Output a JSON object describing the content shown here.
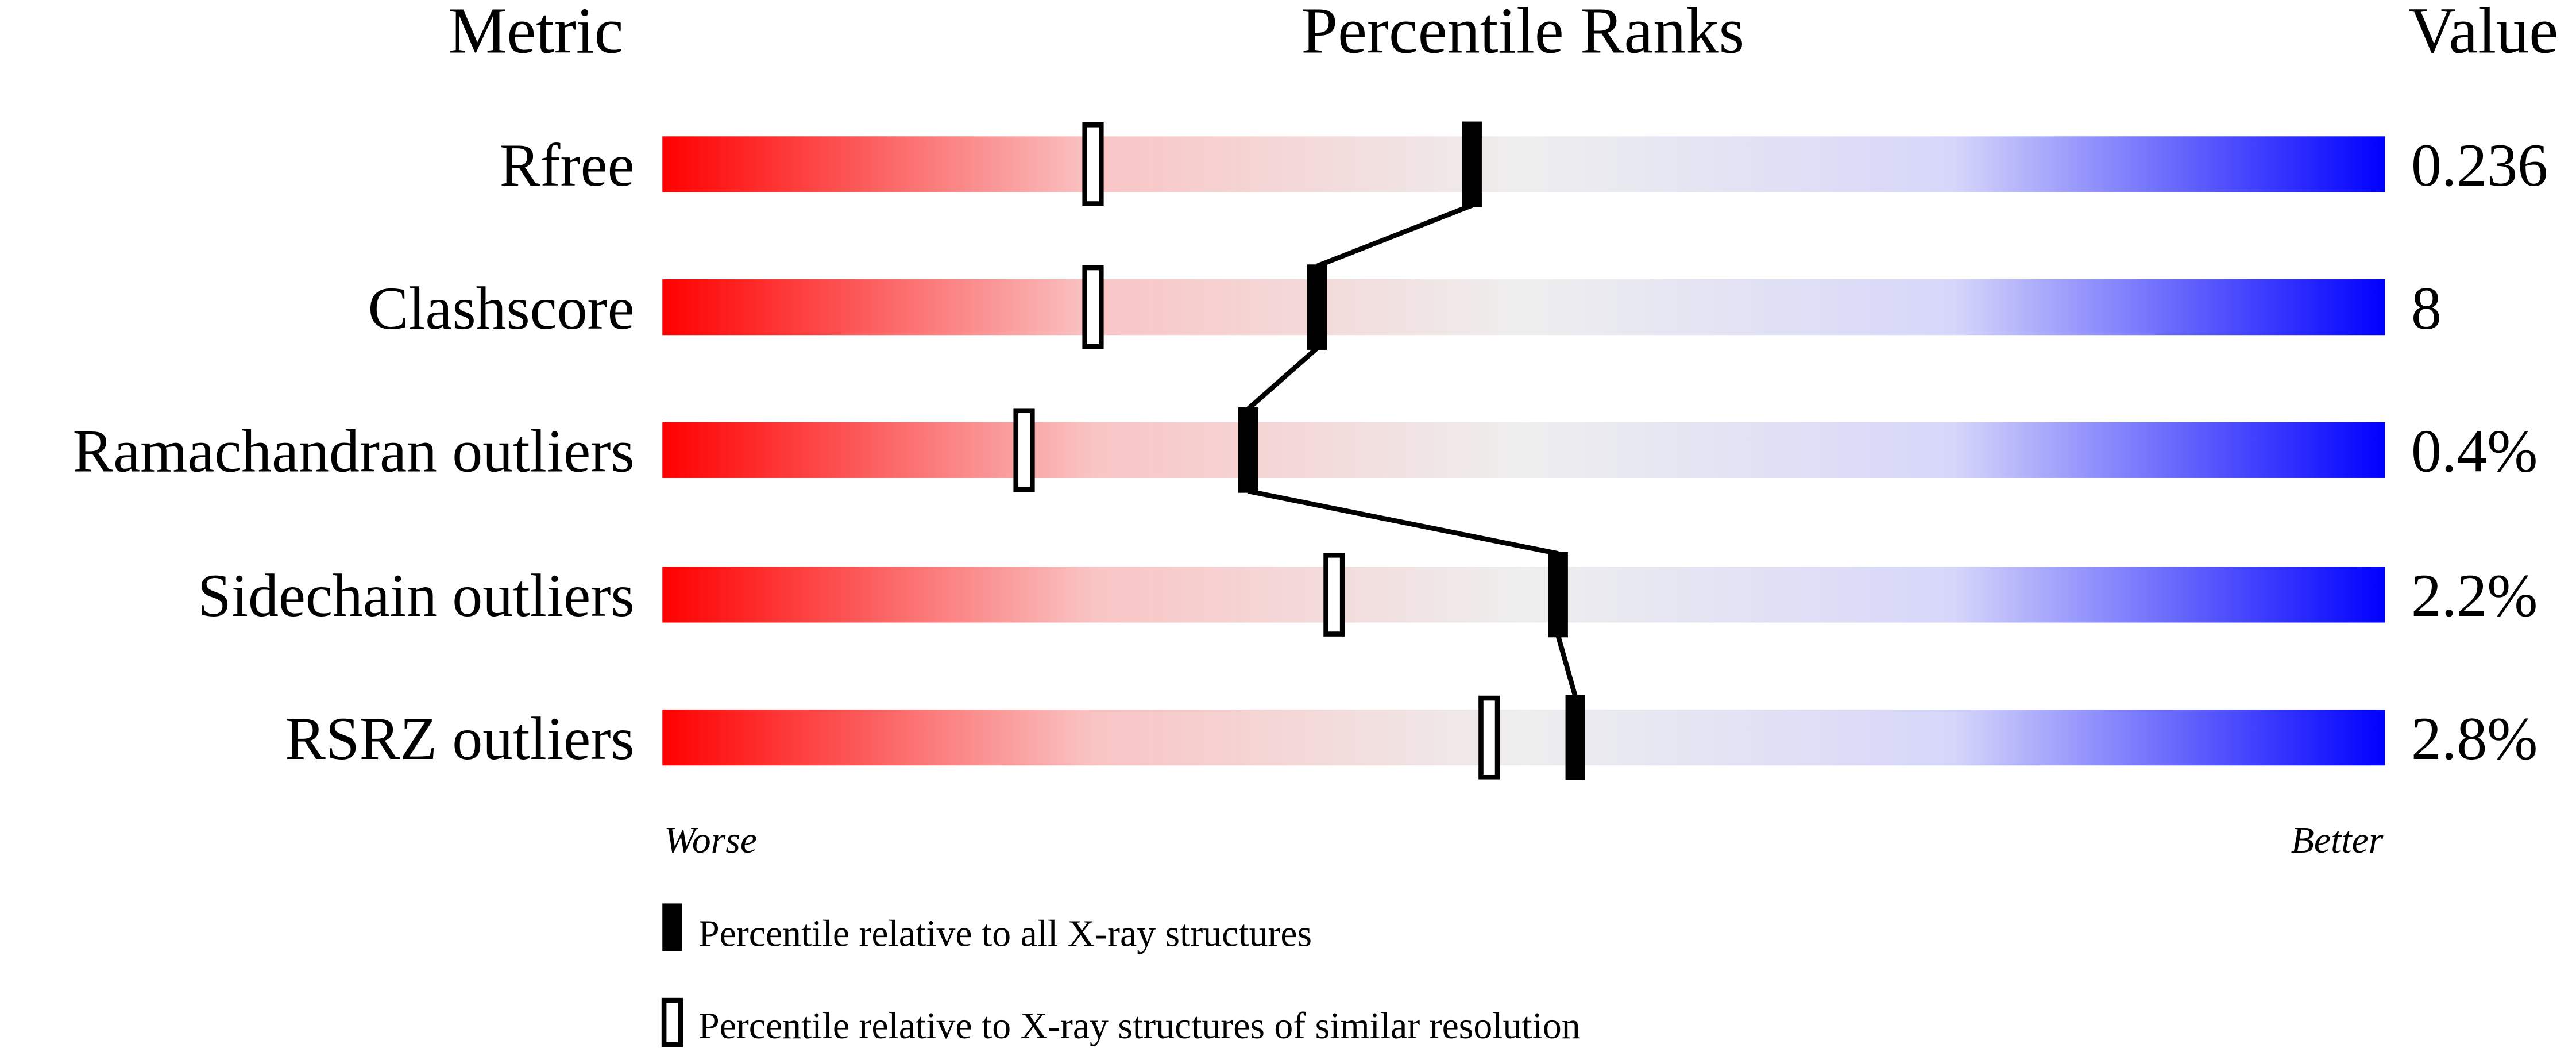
{
  "chart_data": {
    "type": "table",
    "headers": {
      "metric": "Metric",
      "ranks": "Percentile Ranks",
      "value": "Value"
    },
    "xlim": [
      0,
      100
    ],
    "axis_labels": {
      "low": "Worse",
      "high": "Better"
    },
    "gradient_colors": [
      "#ff0000",
      "#f9c4c4",
      "#eeeeee",
      "#d6d6fa",
      "#0000ff"
    ],
    "rows": [
      {
        "metric": "Rfree",
        "value": "0.236",
        "percentile_all": 47,
        "percentile_similar": 25
      },
      {
        "metric": "Clashscore",
        "value": "8",
        "percentile_all": 38,
        "percentile_similar": 25
      },
      {
        "metric": "Ramachandran outliers",
        "value": "0.4%",
        "percentile_all": 34,
        "percentile_similar": 21
      },
      {
        "metric": "Sidechain outliers",
        "value": "2.2%",
        "percentile_all": 52,
        "percentile_similar": 39
      },
      {
        "metric": "RSRZ outliers",
        "value": "2.8%",
        "percentile_all": 53,
        "percentile_similar": 48
      }
    ],
    "legend": [
      {
        "marker": "filled",
        "label": "Percentile relative to all X-ray structures"
      },
      {
        "marker": "open",
        "label": "Percentile relative to X-ray structures of similar resolution"
      }
    ]
  }
}
